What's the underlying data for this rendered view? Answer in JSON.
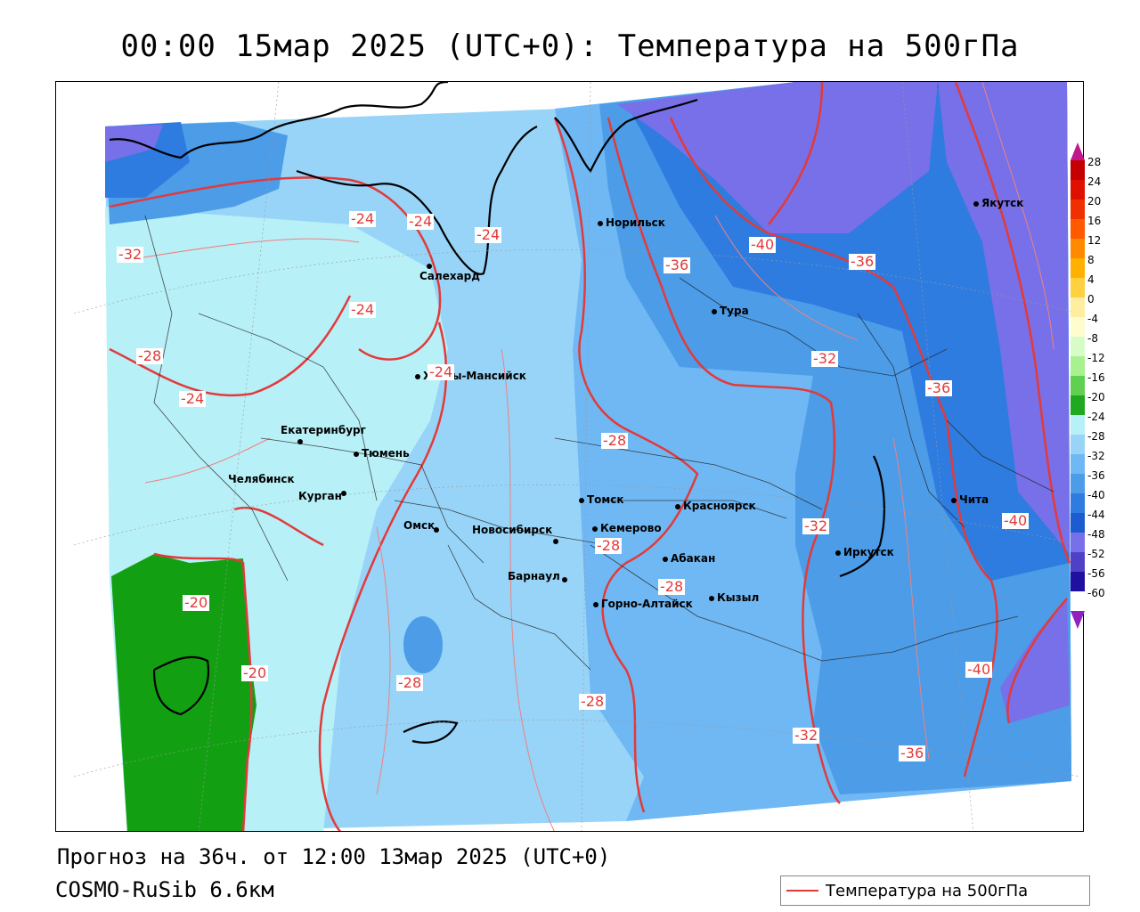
{
  "title": "00:00 15мар 2025 (UTC+0): Температура на 500гПа",
  "forecast_text": "Прогноз на 36ч. от 12:00 13мар 2025 (UTC+0)",
  "model_text": "COSMO-RuSib 6.6км",
  "legend": {
    "label": "Температура на 500гПа",
    "line_color": "#e23a3a"
  },
  "cities": [
    {
      "name": "Якутск"
    },
    {
      "name": "Норильск"
    },
    {
      "name": "Салехард"
    },
    {
      "name": "Тура"
    },
    {
      "name": "Ханты-Мансийск"
    },
    {
      "name": "Екатеринбург"
    },
    {
      "name": "Тюмень"
    },
    {
      "name": "Челябинск"
    },
    {
      "name": "Курган"
    },
    {
      "name": "Томск"
    },
    {
      "name": "Красноярск"
    },
    {
      "name": "Омск"
    },
    {
      "name": "Новосибирск"
    },
    {
      "name": "Кемерово"
    },
    {
      "name": "Абакан"
    },
    {
      "name": "Барнаул"
    },
    {
      "name": "Кызыл"
    },
    {
      "name": "Горно-Алтайск"
    },
    {
      "name": "Иркутск"
    },
    {
      "name": "Чита"
    }
  ],
  "isotherm_labels": [
    "-24",
    "-24",
    "-24",
    "-32",
    "-24",
    "-28",
    "-24",
    "-24",
    "-40",
    "-36",
    "-36",
    "-32",
    "-36",
    "-28",
    "-28",
    "-32",
    "-28",
    "-20",
    "-20",
    "-28",
    "-28",
    "-40",
    "-40",
    "-32",
    "-36"
  ],
  "colorbar": {
    "ticks": [
      "28",
      "24",
      "20",
      "16",
      "12",
      "8",
      "4",
      "0",
      "-4",
      "-8",
      "-12",
      "-16",
      "-20",
      "-24",
      "-28",
      "-32",
      "-36",
      "-40",
      "-44",
      "-48",
      "-52",
      "-56",
      "-60"
    ],
    "colors": [
      "#c40000",
      "#e01000",
      "#f03000",
      "#ff5a00",
      "#ff8a00",
      "#ffb000",
      "#ffd040",
      "#ffeea0",
      "#fffcd0",
      "#d8fcc8",
      "#a8f090",
      "#60d050",
      "#20a820",
      "#b8f0f8",
      "#98d4f8",
      "#70b8f4",
      "#4c9ce8",
      "#2e7ce0",
      "#1c5cd0",
      "#7870e8",
      "#5040c8",
      "#2010a0",
      "#ffffff"
    ]
  }
}
